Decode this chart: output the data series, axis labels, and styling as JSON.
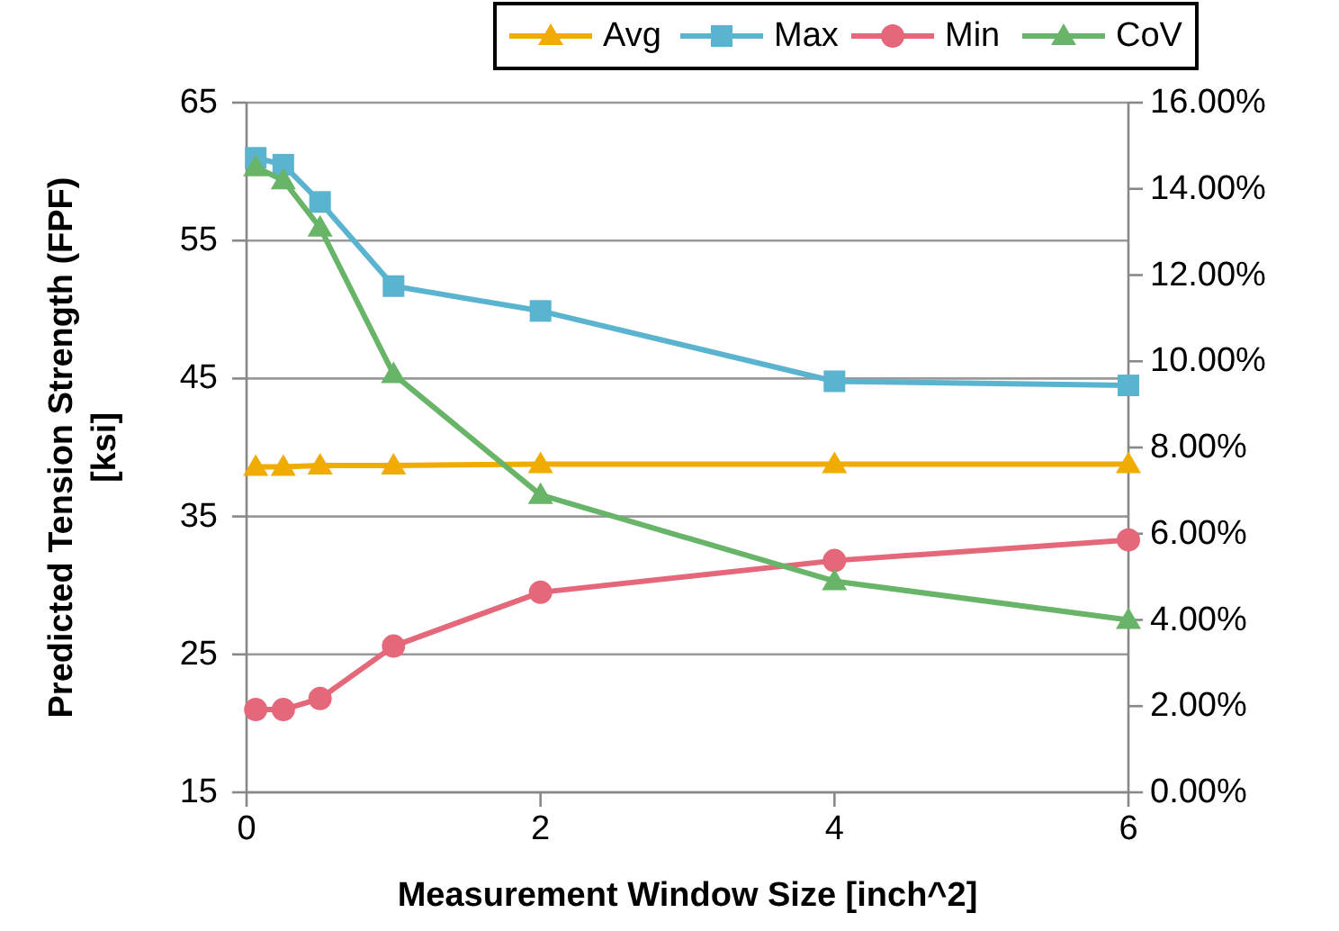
{
  "chart_data": {
    "type": "line",
    "xlabel": "Measurement Window Size [inch^2]",
    "ylabel": "Predicted Tension Strength (FPF) [ksi]",
    "x": [
      0.0625,
      0.25,
      0.5,
      1,
      2,
      4,
      6
    ],
    "series": [
      {
        "name": "Avg",
        "color": "#f0ac00",
        "marker": "triangle",
        "values": [
          38.6,
          38.6,
          38.7,
          38.7,
          38.8,
          38.8,
          38.8
        ]
      },
      {
        "name": "Max",
        "color": "#5ab4cf",
        "marker": "square",
        "values": [
          61,
          60.5,
          57.8,
          51.7,
          49.9,
          44.8,
          44.5
        ]
      },
      {
        "name": "Min",
        "color": "#e5677a",
        "marker": "circle",
        "values": [
          21,
          21,
          21.8,
          25.6,
          29.5,
          31.8,
          33.3
        ]
      },
      {
        "name": "CoV",
        "color": "#68b468",
        "marker": "triangle",
        "axis": "y2",
        "values": [
          14.5,
          14.2,
          13.1,
          9.7,
          6.9,
          4.9,
          4.0
        ]
      }
    ],
    "xlim": [
      0,
      6
    ],
    "xticks": [
      0,
      2,
      4,
      6
    ],
    "ylim": [
      15,
      65
    ],
    "yticks": [
      15,
      25,
      35,
      45,
      55,
      65
    ],
    "y2lim": [
      0,
      16
    ],
    "y2ticks": [
      {
        "value": 0,
        "label": "0.00%"
      },
      {
        "value": 2,
        "label": "2.00%"
      },
      {
        "value": 4,
        "label": "4.00%"
      },
      {
        "value": 6,
        "label": "6.00%"
      },
      {
        "value": 8,
        "label": "8.00%"
      },
      {
        "value": 10,
        "label": "10.00%"
      },
      {
        "value": 12,
        "label": "12.00%"
      },
      {
        "value": 14,
        "label": "14.00%"
      },
      {
        "value": 16,
        "label": "16.00%"
      }
    ],
    "grid": "y",
    "legend": "top"
  }
}
